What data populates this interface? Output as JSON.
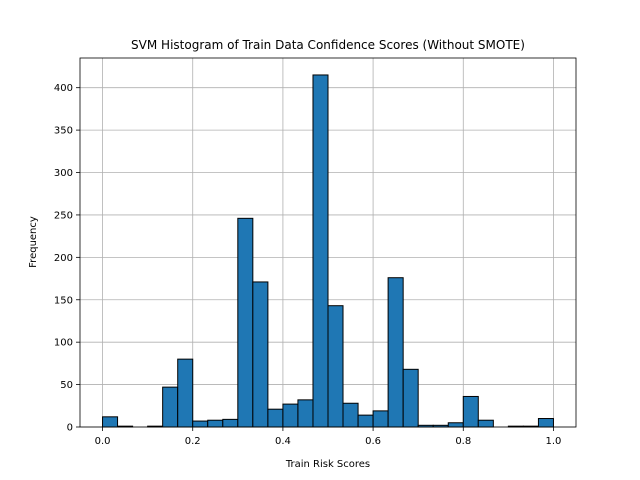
{
  "chart_data": {
    "type": "bar",
    "title": "SVM Histogram of Train Data Confidence Scores (Without SMOTE)",
    "xlabel": "Train Risk Scores",
    "ylabel": "Frequency",
    "xlim": [
      -0.05,
      1.05
    ],
    "ylim": [
      0,
      435
    ],
    "xticks": [
      0.0,
      0.2,
      0.4,
      0.6,
      0.8,
      1.0
    ],
    "xtick_labels": [
      "0.0",
      "0.2",
      "0.4",
      "0.6",
      "0.8",
      "1.0"
    ],
    "yticks": [
      0,
      50,
      100,
      150,
      200,
      250,
      300,
      350,
      400
    ],
    "ytick_labels": [
      "0",
      "50",
      "100",
      "150",
      "200",
      "250",
      "300",
      "350",
      "400"
    ],
    "grid": true,
    "bin_edges": [
      0.0,
      0.0333,
      0.0667,
      0.1,
      0.1333,
      0.1667,
      0.2,
      0.2333,
      0.2667,
      0.3,
      0.3333,
      0.3667,
      0.4,
      0.4333,
      0.4667,
      0.5,
      0.5333,
      0.5667,
      0.6,
      0.6333,
      0.6667,
      0.7,
      0.7333,
      0.7667,
      0.8,
      0.8333,
      0.8667,
      0.9,
      0.9333,
      0.9667,
      1.0
    ],
    "values": [
      12,
      1,
      0,
      1,
      47,
      80,
      7,
      8,
      9,
      246,
      171,
      21,
      27,
      32,
      415,
      143,
      28,
      14,
      19,
      176,
      68,
      2,
      2,
      5,
      36,
      8,
      0,
      1,
      1,
      10
    ],
    "colors": {
      "bar": "#1f77b4",
      "edge": "#000000",
      "grid": "#b0b0b0"
    }
  }
}
